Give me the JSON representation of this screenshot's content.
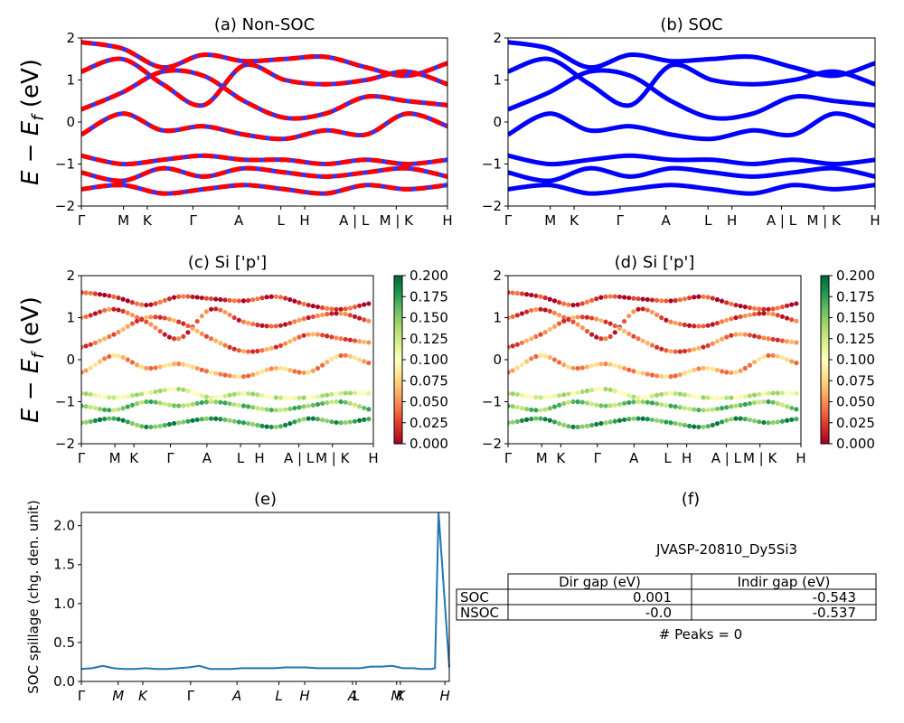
{
  "chart_data": [
    {
      "id": "a",
      "type": "line",
      "title": "(a) Non-SOC",
      "ylabel": "E − E_f (eV)",
      "ylim": [
        -2,
        2
      ],
      "yticks": [
        -2,
        -1,
        0,
        1,
        2
      ],
      "kpath_labels": [
        "Γ",
        "M",
        "K",
        "Γ",
        "A",
        "L",
        "H",
        "A | L",
        "M | K",
        "H"
      ],
      "series": [
        {
          "name": "",
          "color": "#ff0000",
          "style": "dashed",
          "x": [
            0,
            1,
            2,
            3,
            4,
            5,
            6,
            7,
            8,
            9
          ],
          "values": [
            1.9,
            1.75,
            1.3,
            1.6,
            1.45,
            1.5,
            1.55,
            1.3,
            1.1,
            1.4
          ]
        },
        {
          "name": "",
          "color": "#ff0000",
          "style": "dashed",
          "x": [
            0,
            1,
            2,
            3,
            4,
            5,
            6,
            7,
            8,
            9
          ],
          "values": [
            1.2,
            1.5,
            0.9,
            0.4,
            1.35,
            1.0,
            0.9,
            1.0,
            1.2,
            0.9
          ]
        },
        {
          "name": "",
          "color": "#ff0000",
          "style": "dashed",
          "x": [
            0,
            1,
            2,
            3,
            4,
            5,
            6,
            7,
            8,
            9
          ],
          "values": [
            0.3,
            0.7,
            1.2,
            1.1,
            0.5,
            0.1,
            0.2,
            0.6,
            0.5,
            0.4
          ]
        },
        {
          "name": "",
          "color": "#ff0000",
          "style": "dashed",
          "x": [
            0,
            1,
            2,
            3,
            4,
            5,
            6,
            7,
            8,
            9
          ],
          "values": [
            -0.3,
            0.2,
            -0.2,
            -0.1,
            -0.3,
            -0.4,
            -0.2,
            -0.3,
            0.2,
            -0.1
          ]
        },
        {
          "name": "",
          "color": "#ff0000",
          "style": "dashed",
          "x": [
            0,
            1,
            2,
            3,
            4,
            5,
            6,
            7,
            8,
            9
          ],
          "values": [
            -0.8,
            -1.0,
            -0.9,
            -0.8,
            -0.9,
            -0.9,
            -1.0,
            -0.9,
            -1.0,
            -0.9
          ]
        },
        {
          "name": "",
          "color": "#ff0000",
          "style": "dashed",
          "x": [
            0,
            1,
            2,
            3,
            4,
            5,
            6,
            7,
            8,
            9
          ],
          "values": [
            -1.2,
            -1.4,
            -1.1,
            -1.3,
            -1.1,
            -1.2,
            -1.3,
            -1.2,
            -1.1,
            -1.3
          ]
        },
        {
          "name": "",
          "color": "#ff0000",
          "style": "dashed",
          "x": [
            0,
            1,
            2,
            3,
            4,
            5,
            6,
            7,
            8,
            9
          ],
          "values": [
            -1.6,
            -1.5,
            -1.7,
            -1.6,
            -1.5,
            -1.6,
            -1.7,
            -1.5,
            -1.6,
            -1.5
          ]
        }
      ]
    },
    {
      "id": "b",
      "type": "line",
      "title": "(b) SOC",
      "ylim": [
        -2,
        2
      ],
      "yticks": [
        -2,
        -1,
        0,
        1,
        2
      ],
      "kpath_labels": [
        "Γ",
        "M",
        "K",
        "Γ",
        "A",
        "L",
        "H",
        "A | L",
        "M | K",
        "H"
      ],
      "series": [
        {
          "name": "",
          "color": "#0000ff",
          "x": [
            0,
            1,
            2,
            3,
            4,
            5,
            6,
            7,
            8,
            9
          ],
          "values": [
            1.9,
            1.75,
            1.3,
            1.6,
            1.45,
            1.5,
            1.55,
            1.3,
            1.1,
            1.4
          ]
        },
        {
          "name": "",
          "color": "#0000ff",
          "x": [
            0,
            1,
            2,
            3,
            4,
            5,
            6,
            7,
            8,
            9
          ],
          "values": [
            1.2,
            1.5,
            0.9,
            0.4,
            1.35,
            1.0,
            0.9,
            1.0,
            1.2,
            0.9
          ]
        },
        {
          "name": "",
          "color": "#0000ff",
          "x": [
            0,
            1,
            2,
            3,
            4,
            5,
            6,
            7,
            8,
            9
          ],
          "values": [
            0.3,
            0.7,
            1.2,
            1.1,
            0.5,
            0.1,
            0.2,
            0.6,
            0.5,
            0.4
          ]
        },
        {
          "name": "",
          "color": "#0000ff",
          "x": [
            0,
            1,
            2,
            3,
            4,
            5,
            6,
            7,
            8,
            9
          ],
          "values": [
            -0.3,
            0.2,
            -0.2,
            -0.1,
            -0.3,
            -0.4,
            -0.2,
            -0.3,
            0.2,
            -0.1
          ]
        },
        {
          "name": "",
          "color": "#0000ff",
          "x": [
            0,
            1,
            2,
            3,
            4,
            5,
            6,
            7,
            8,
            9
          ],
          "values": [
            -0.8,
            -1.0,
            -0.9,
            -0.8,
            -0.9,
            -0.9,
            -1.0,
            -0.9,
            -1.0,
            -0.9
          ]
        },
        {
          "name": "",
          "color": "#0000ff",
          "x": [
            0,
            1,
            2,
            3,
            4,
            5,
            6,
            7,
            8,
            9
          ],
          "values": [
            -1.2,
            -1.4,
            -1.1,
            -1.3,
            -1.1,
            -1.2,
            -1.3,
            -1.2,
            -1.1,
            -1.3
          ]
        },
        {
          "name": "",
          "color": "#0000ff",
          "x": [
            0,
            1,
            2,
            3,
            4,
            5,
            6,
            7,
            8,
            9
          ],
          "values": [
            -1.6,
            -1.5,
            -1.7,
            -1.6,
            -1.5,
            -1.6,
            -1.7,
            -1.5,
            -1.6,
            -1.5
          ]
        }
      ]
    },
    {
      "id": "c",
      "type": "scatter",
      "title": "(c)  Si ['p']",
      "ylabel": "E − E_f (eV)",
      "ylim": [
        -2,
        2
      ],
      "yticks": [
        -2,
        -1,
        0,
        1,
        2
      ],
      "kpath_labels": [
        "Γ",
        "M",
        "K",
        "Γ",
        "A",
        "L",
        "H",
        "A | L",
        "M | K",
        "H"
      ],
      "colorbar": {
        "colormap": "RdYlGn",
        "range": [
          0,
          0.2
        ],
        "ticks": [
          "0.000",
          "0.025",
          "0.050",
          "0.075",
          "0.100",
          "0.125",
          "0.150",
          "0.175",
          "0.200"
        ]
      },
      "bands": [
        {
          "x": [
            0,
            1,
            2,
            3,
            4,
            5,
            6,
            7,
            8,
            9
          ],
          "values": [
            1.6,
            1.5,
            1.3,
            1.5,
            1.45,
            1.4,
            1.5,
            1.3,
            1.2,
            1.35
          ],
          "weight": 0.02
        },
        {
          "x": [
            0,
            1,
            2,
            3,
            4,
            5,
            6,
            7,
            8,
            9
          ],
          "values": [
            1.0,
            1.2,
            0.9,
            0.5,
            1.2,
            0.9,
            0.8,
            1.0,
            1.1,
            0.9
          ],
          "weight": 0.03
        },
        {
          "x": [
            0,
            1,
            2,
            3,
            4,
            5,
            6,
            7,
            8,
            9
          ],
          "values": [
            0.3,
            0.6,
            1.0,
            0.9,
            0.5,
            0.2,
            0.3,
            0.6,
            0.5,
            0.4
          ],
          "weight": 0.04
        },
        {
          "x": [
            0,
            1,
            2,
            3,
            4,
            5,
            6,
            7,
            8,
            9
          ],
          "values": [
            -0.3,
            0.1,
            -0.2,
            -0.1,
            -0.3,
            -0.4,
            -0.2,
            -0.3,
            0.1,
            -0.1
          ],
          "weight": 0.06
        },
        {
          "x": [
            0,
            1,
            2,
            3,
            4,
            5,
            6,
            7,
            8,
            9
          ],
          "values": [
            -0.8,
            -0.9,
            -0.8,
            -0.7,
            -0.9,
            -0.8,
            -0.9,
            -0.9,
            -0.8,
            -0.8
          ],
          "weight": 0.12
        },
        {
          "x": [
            0,
            1,
            2,
            3,
            4,
            5,
            6,
            7,
            8,
            9
          ],
          "values": [
            -1.1,
            -1.2,
            -1.0,
            -1.1,
            -1.0,
            -1.1,
            -1.2,
            -1.1,
            -1.0,
            -1.2
          ],
          "weight": 0.15
        },
        {
          "x": [
            0,
            1,
            2,
            3,
            4,
            5,
            6,
            7,
            8,
            9
          ],
          "values": [
            -1.5,
            -1.4,
            -1.6,
            -1.5,
            -1.4,
            -1.5,
            -1.6,
            -1.4,
            -1.5,
            -1.4
          ],
          "weight": 0.17
        }
      ]
    },
    {
      "id": "d",
      "type": "scatter",
      "title": "(d) Si ['p']",
      "ylim": [
        -2,
        2
      ],
      "yticks": [
        -2,
        -1,
        0,
        1,
        2
      ],
      "kpath_labels": [
        "Γ",
        "M",
        "K",
        "Γ",
        "A",
        "L",
        "H",
        "A | L",
        "M | K",
        "H"
      ],
      "colorbar": {
        "colormap": "RdYlGn",
        "range": [
          0,
          0.2
        ],
        "ticks": [
          "0.000",
          "0.025",
          "0.050",
          "0.075",
          "0.100",
          "0.125",
          "0.150",
          "0.175",
          "0.200"
        ]
      },
      "bands": [
        {
          "x": [
            0,
            1,
            2,
            3,
            4,
            5,
            6,
            7,
            8,
            9
          ],
          "values": [
            1.6,
            1.5,
            1.3,
            1.5,
            1.45,
            1.4,
            1.5,
            1.3,
            1.2,
            1.35
          ],
          "weight": 0.02
        },
        {
          "x": [
            0,
            1,
            2,
            3,
            4,
            5,
            6,
            7,
            8,
            9
          ],
          "values": [
            1.0,
            1.2,
            0.9,
            0.5,
            1.2,
            0.9,
            0.8,
            1.0,
            1.1,
            0.9
          ],
          "weight": 0.03
        },
        {
          "x": [
            0,
            1,
            2,
            3,
            4,
            5,
            6,
            7,
            8,
            9
          ],
          "values": [
            0.3,
            0.6,
            1.0,
            0.9,
            0.5,
            0.2,
            0.3,
            0.6,
            0.5,
            0.4
          ],
          "weight": 0.04
        },
        {
          "x": [
            0,
            1,
            2,
            3,
            4,
            5,
            6,
            7,
            8,
            9
          ],
          "values": [
            -0.3,
            0.1,
            -0.2,
            -0.1,
            -0.3,
            -0.4,
            -0.2,
            -0.3,
            0.1,
            -0.1
          ],
          "weight": 0.06
        },
        {
          "x": [
            0,
            1,
            2,
            3,
            4,
            5,
            6,
            7,
            8,
            9
          ],
          "values": [
            -0.8,
            -0.9,
            -0.8,
            -0.7,
            -0.9,
            -0.8,
            -0.9,
            -0.9,
            -0.8,
            -0.8
          ],
          "weight": 0.12
        },
        {
          "x": [
            0,
            1,
            2,
            3,
            4,
            5,
            6,
            7,
            8,
            9
          ],
          "values": [
            -1.1,
            -1.2,
            -1.0,
            -1.1,
            -1.0,
            -1.1,
            -1.2,
            -1.1,
            -1.0,
            -1.2
          ],
          "weight": 0.15
        },
        {
          "x": [
            0,
            1,
            2,
            3,
            4,
            5,
            6,
            7,
            8,
            9
          ],
          "values": [
            -1.5,
            -1.4,
            -1.6,
            -1.5,
            -1.4,
            -1.5,
            -1.6,
            -1.4,
            -1.5,
            -1.4
          ],
          "weight": 0.17
        }
      ]
    },
    {
      "id": "e",
      "type": "line",
      "title": "(e)",
      "ylabel": "SOC spillage (chg. den. unit)",
      "ylim": [
        0,
        2.17
      ],
      "yticks": [
        "0.0",
        "0.5",
        "1.0",
        "1.5",
        "2.0"
      ],
      "kpath_labels": [
        "Γ",
        "M",
        "K",
        "Γ",
        "A",
        "L",
        "H",
        "A",
        "L",
        "M",
        "K",
        "H"
      ],
      "series": [
        {
          "name": "",
          "color": "#1f77b4",
          "x": [
            0,
            0.3,
            0.6,
            0.9,
            1.2,
            1.5,
            1.8,
            2.1,
            2.4,
            2.7,
            3.0,
            3.3,
            3.6,
            3.9,
            4.2,
            4.5,
            4.8,
            5.1,
            5.4,
            5.7,
            6.0,
            6.3,
            6.6,
            6.9,
            7.2,
            7.5,
            7.8,
            8.1,
            8.4,
            8.7,
            9.0,
            9.3,
            9.5,
            9.7,
            9.8,
            9.9,
            10.0,
            10.3
          ],
          "values": [
            0.16,
            0.17,
            0.2,
            0.17,
            0.16,
            0.16,
            0.17,
            0.16,
            0.16,
            0.17,
            0.18,
            0.2,
            0.16,
            0.16,
            0.16,
            0.17,
            0.17,
            0.17,
            0.17,
            0.18,
            0.18,
            0.18,
            0.17,
            0.17,
            0.17,
            0.17,
            0.17,
            0.19,
            0.19,
            0.2,
            0.17,
            0.17,
            0.16,
            0.16,
            0.16,
            0.17,
            2.17,
            0.18
          ]
        }
      ]
    }
  ],
  "panel_f": {
    "title": "(f)",
    "subtitle": "JVASP-20810_Dy5Si3",
    "table": {
      "headers": [
        "",
        "Dir gap (eV)",
        "Indir gap (eV)"
      ],
      "rows": [
        [
          "SOC",
          "0.001",
          "-0.543"
        ],
        [
          "NSOC",
          "-0.0",
          "-0.537"
        ]
      ]
    },
    "peaks_text": "# Peaks = 0"
  },
  "colors": {
    "nonsoc_red": "#ff0000",
    "nonsoc_blue": "#3333ff",
    "soc_blue": "#0000ff",
    "spillage_line": "#1f77b4"
  }
}
